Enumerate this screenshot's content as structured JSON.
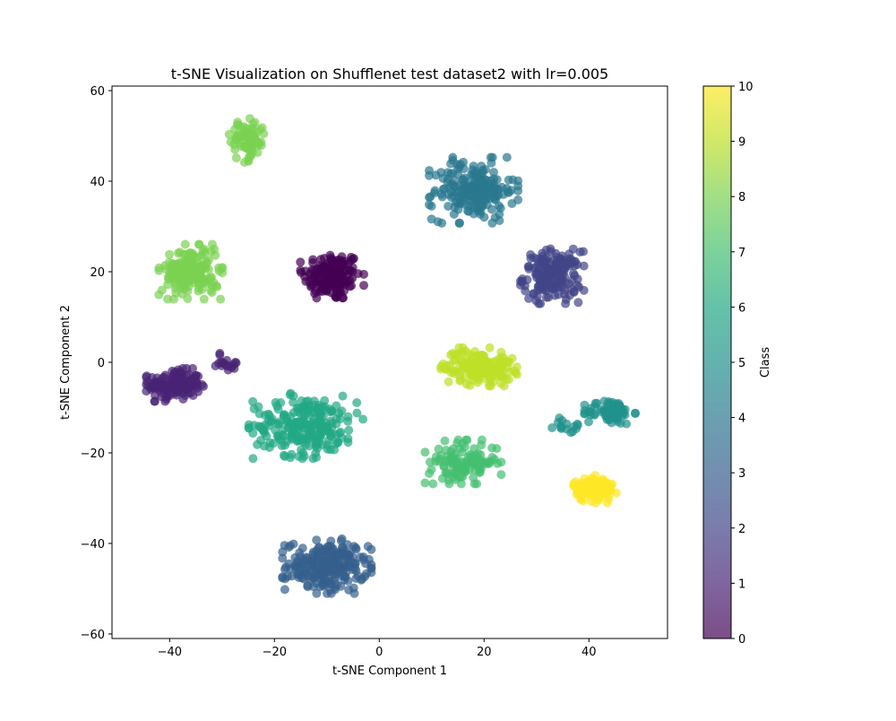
{
  "chart_data": {
    "type": "scatter",
    "title": "t-SNE Visualization on Shufflenet test dataset2 with lr=0.005",
    "xlabel": "t-SNE Component 1",
    "ylabel": "t-SNE Component 2",
    "xlim": [
      -51,
      55
    ],
    "ylim": [
      -61,
      61
    ],
    "xticks": [
      -40,
      -20,
      0,
      20,
      40
    ],
    "yticks": [
      -60,
      -40,
      -20,
      0,
      20,
      40,
      60
    ],
    "grid": false,
    "legend": "none",
    "colormap": "viridis",
    "alpha": 0.7,
    "colorbar": {
      "label": "Class",
      "range": [
        0,
        10
      ],
      "ticks": [
        0,
        1,
        2,
        3,
        4,
        5,
        6,
        7,
        8,
        9,
        10
      ],
      "colors": [
        "#440154",
        "#482475",
        "#414487",
        "#355f8d",
        "#2a788e",
        "#21918c",
        "#22a884",
        "#44bf70",
        "#7ad151",
        "#bddf26",
        "#fde725"
      ]
    },
    "clusters": [
      {
        "class": 0,
        "center": [
          -9,
          19
        ],
        "spread": [
          5,
          5
        ],
        "count": 160
      },
      {
        "class": 1,
        "center": [
          -39,
          -5
        ],
        "spread": [
          4.5,
          3
        ],
        "count": 150
      },
      {
        "class": 1,
        "center": [
          -29,
          0
        ],
        "spread": [
          3,
          2
        ],
        "count": 18
      },
      {
        "class": 2,
        "center": [
          33,
          19
        ],
        "spread": [
          5,
          5
        ],
        "count": 170
      },
      {
        "class": 3,
        "center": [
          -10,
          -45
        ],
        "spread": [
          7,
          5
        ],
        "count": 230
      },
      {
        "class": 4,
        "center": [
          18,
          38
        ],
        "spread": [
          7,
          6
        ],
        "count": 200
      },
      {
        "class": 5,
        "center": [
          44,
          -11
        ],
        "spread": [
          4,
          2.5
        ],
        "count": 70
      },
      {
        "class": 5,
        "center": [
          36,
          -14
        ],
        "spread": [
          2.5,
          1.5
        ],
        "count": 15
      },
      {
        "class": 6,
        "center": [
          -14,
          -14
        ],
        "spread": [
          9,
          6
        ],
        "count": 240
      },
      {
        "class": 7,
        "center": [
          16,
          -22
        ],
        "spread": [
          6,
          4
        ],
        "count": 120
      },
      {
        "class": 8,
        "center": [
          -25,
          49
        ],
        "spread": [
          3,
          4
        ],
        "count": 80
      },
      {
        "class": 8,
        "center": [
          -36,
          20
        ],
        "spread": [
          5,
          5
        ],
        "count": 170
      },
      {
        "class": 9,
        "center": [
          19,
          -1
        ],
        "spread": [
          6,
          3.5
        ],
        "count": 160
      },
      {
        "class": 10,
        "center": [
          41,
          -28
        ],
        "spread": [
          3.5,
          2.5
        ],
        "count": 110
      }
    ]
  }
}
